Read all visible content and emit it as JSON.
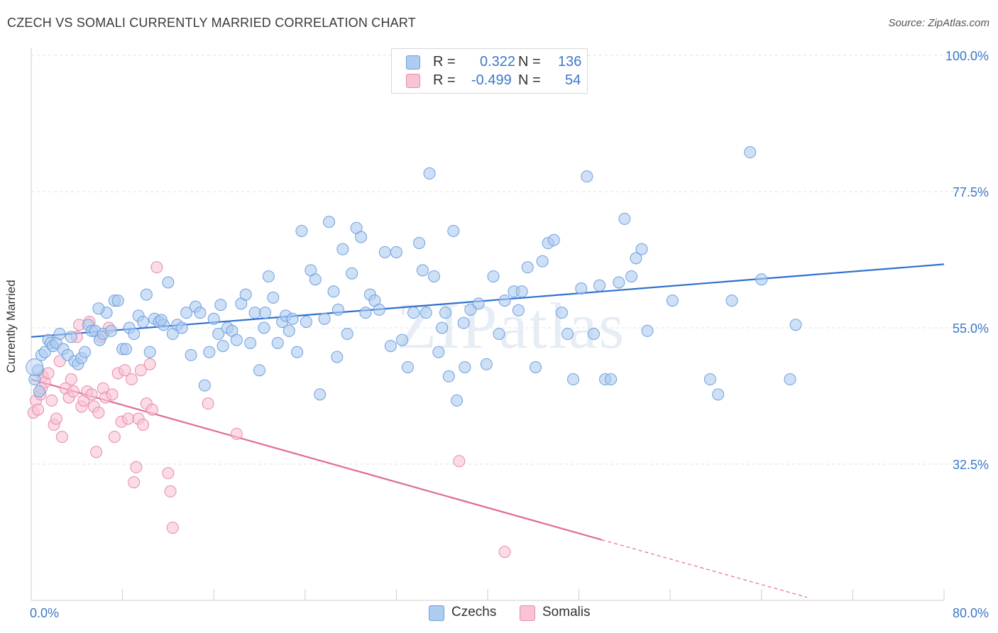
{
  "title": "CZECH VS SOMALI CURRENTLY MARRIED CORRELATION CHART",
  "source": "Source: ZipAtlas.com",
  "watermark": "ZIPatlas",
  "legend_top": {
    "rows": [
      {
        "r_label": "R =",
        "r_value": "0.322",
        "n_label": "N =",
        "n_value": "136",
        "color": "#aecbf0",
        "border": "#6f9fe0"
      },
      {
        "r_label": "R =",
        "r_value": "-0.499",
        "n_label": "N =",
        "n_value": "54",
        "color": "#f8c3d4",
        "border": "#e88aa8"
      }
    ]
  },
  "legend_bottom": [
    {
      "label": "Czechs",
      "color": "#aecbf0",
      "border": "#6f9fe0"
    },
    {
      "label": "Somalis",
      "color": "#f8c3d4",
      "border": "#e88aa8"
    }
  ],
  "chart_data": {
    "type": "scatter",
    "title": "CZECH VS SOMALI CURRENTLY MARRIED CORRELATION CHART",
    "xlabel": "",
    "ylabel": "Currently Married",
    "xlim": [
      0,
      80
    ],
    "ylim": [
      10,
      100
    ],
    "x_tick_labels": [
      "0.0%",
      "80.0%"
    ],
    "y_ticks": [
      32.5,
      55.0,
      77.5,
      100.0
    ],
    "y_tick_labels": [
      "32.5%",
      "55.0%",
      "77.5%",
      "100.0%"
    ],
    "grid": true,
    "legend_position": "top-center",
    "colors": {
      "czechs_fill": "#aecbf0",
      "czechs_edge": "#6f9fe0",
      "czechs_line": "#2f6fcf",
      "somalis_fill": "#f8c3d4",
      "somalis_edge": "#e88aa8",
      "somalis_line": "#e06b98",
      "tick_label": "#3b78c9"
    },
    "series": [
      {
        "name": "Czechs",
        "trend": {
          "x": [
            0,
            80
          ],
          "y": [
            53.5,
            65.5
          ]
        },
        "points": [
          [
            0.3,
            46.5
          ],
          [
            0.6,
            48.0
          ],
          [
            0.7,
            44.5
          ],
          [
            0.9,
            50.5
          ],
          [
            1.2,
            51.0
          ],
          [
            1.5,
            53.0
          ],
          [
            1.7,
            52.5
          ],
          [
            1.9,
            52.0
          ],
          [
            2.2,
            52.5
          ],
          [
            2.5,
            54.0
          ],
          [
            2.8,
            51.5
          ],
          [
            3.2,
            50.5
          ],
          [
            3.5,
            53.5
          ],
          [
            3.8,
            49.5
          ],
          [
            4.1,
            49.0
          ],
          [
            4.4,
            50.0
          ],
          [
            4.7,
            51.0
          ],
          [
            5.0,
            55.5
          ],
          [
            5.3,
            54.5
          ],
          [
            5.6,
            54.5
          ],
          [
            6.0,
            53.0
          ],
          [
            6.3,
            54.0
          ],
          [
            6.6,
            57.5
          ],
          [
            7.0,
            54.5
          ],
          [
            7.3,
            59.5
          ],
          [
            7.6,
            59.5
          ],
          [
            8.0,
            51.5
          ],
          [
            8.3,
            51.5
          ],
          [
            8.6,
            55.0
          ],
          [
            9.0,
            54.0
          ],
          [
            9.4,
            57.0
          ],
          [
            9.8,
            56.0
          ],
          [
            10.1,
            60.5
          ],
          [
            10.4,
            51.0
          ],
          [
            10.8,
            56.5
          ],
          [
            11.2,
            56.0
          ],
          [
            11.6,
            55.5
          ],
          [
            12.0,
            62.5
          ],
          [
            12.4,
            54.0
          ],
          [
            12.8,
            55.5
          ],
          [
            13.2,
            55.0
          ],
          [
            13.6,
            57.5
          ],
          [
            14.0,
            50.5
          ],
          [
            14.4,
            58.5
          ],
          [
            14.8,
            57.5
          ],
          [
            15.2,
            45.5
          ],
          [
            15.6,
            51.0
          ],
          [
            16.0,
            56.5
          ],
          [
            16.4,
            54.0
          ],
          [
            16.8,
            52.0
          ],
          [
            17.2,
            55.0
          ],
          [
            17.6,
            54.5
          ],
          [
            18.0,
            53.0
          ],
          [
            18.4,
            59.0
          ],
          [
            18.8,
            60.5
          ],
          [
            19.2,
            52.5
          ],
          [
            19.6,
            57.5
          ],
          [
            20.0,
            48.0
          ],
          [
            20.4,
            55.0
          ],
          [
            20.8,
            63.5
          ],
          [
            21.2,
            60.0
          ],
          [
            21.6,
            52.5
          ],
          [
            22.0,
            56.0
          ],
          [
            22.3,
            57.0
          ],
          [
            22.6,
            54.5
          ],
          [
            22.9,
            56.5
          ],
          [
            23.3,
            51.0
          ],
          [
            23.7,
            71.0
          ],
          [
            24.1,
            56.0
          ],
          [
            24.5,
            64.5
          ],
          [
            24.9,
            63.0
          ],
          [
            25.3,
            44.0
          ],
          [
            25.7,
            56.5
          ],
          [
            26.1,
            72.5
          ],
          [
            26.5,
            61.0
          ],
          [
            26.9,
            58.0
          ],
          [
            27.3,
            68.0
          ],
          [
            27.7,
            54.0
          ],
          [
            28.1,
            64.0
          ],
          [
            28.5,
            71.5
          ],
          [
            28.9,
            70.0
          ],
          [
            29.3,
            57.5
          ],
          [
            29.7,
            60.5
          ],
          [
            30.1,
            59.5
          ],
          [
            30.5,
            58.0
          ],
          [
            31.0,
            67.5
          ],
          [
            31.5,
            52.0
          ],
          [
            32.0,
            67.5
          ],
          [
            32.5,
            53.0
          ],
          [
            33.0,
            48.5
          ],
          [
            33.5,
            57.5
          ],
          [
            34.0,
            69.0
          ],
          [
            34.3,
            64.5
          ],
          [
            34.6,
            57.5
          ],
          [
            34.9,
            80.5
          ],
          [
            35.3,
            63.5
          ],
          [
            35.7,
            51.0
          ],
          [
            36.0,
            55.0
          ],
          [
            36.3,
            57.5
          ],
          [
            36.6,
            47.0
          ],
          [
            37.0,
            71.0
          ],
          [
            37.3,
            43.0
          ],
          [
            38.0,
            48.5
          ],
          [
            38.5,
            58.0
          ],
          [
            39.2,
            59.0
          ],
          [
            39.9,
            49.0
          ],
          [
            40.5,
            63.5
          ],
          [
            41.0,
            54.0
          ],
          [
            41.5,
            59.5
          ],
          [
            42.3,
            61.0
          ],
          [
            43.0,
            61.0
          ],
          [
            43.5,
            65.0
          ],
          [
            44.2,
            48.5
          ],
          [
            44.8,
            66.0
          ],
          [
            45.3,
            69.0
          ],
          [
            45.8,
            69.5
          ],
          [
            46.5,
            57.5
          ],
          [
            47.0,
            54.0
          ],
          [
            47.5,
            46.5
          ],
          [
            48.2,
            61.5
          ],
          [
            48.7,
            80.0
          ],
          [
            49.3,
            54.0
          ],
          [
            49.8,
            62.0
          ],
          [
            50.3,
            46.5
          ],
          [
            50.8,
            46.5
          ],
          [
            51.5,
            62.5
          ],
          [
            52.0,
            73.0
          ],
          [
            52.6,
            63.5
          ],
          [
            53.0,
            66.5
          ],
          [
            53.5,
            68.0
          ],
          [
            54.0,
            54.5
          ],
          [
            56.2,
            59.5
          ],
          [
            59.5,
            46.5
          ],
          [
            60.2,
            44.0
          ],
          [
            61.4,
            59.5
          ],
          [
            63.0,
            84.0
          ],
          [
            66.5,
            46.5
          ],
          [
            67.0,
            55.5
          ],
          [
            64.0,
            63.0
          ],
          [
            20.5,
            57.5
          ],
          [
            11.4,
            56.3
          ],
          [
            16.6,
            58.8
          ],
          [
            37.9,
            55.8
          ],
          [
            42.7,
            57.9
          ],
          [
            26.8,
            50.2
          ],
          [
            5.9,
            58.2
          ]
        ]
      },
      {
        "name": "Somalis",
        "trend": {
          "x": [
            0,
            50
          ],
          "y": [
            46.5,
            20.0
          ]
        },
        "trend_dashed": {
          "x": [
            50,
            68
          ],
          "y": [
            20.0,
            10.5
          ]
        },
        "points": [
          [
            0.2,
            41.0
          ],
          [
            0.4,
            43.0
          ],
          [
            0.6,
            41.5
          ],
          [
            0.8,
            44.0
          ],
          [
            1.0,
            47.0
          ],
          [
            1.2,
            46.0
          ],
          [
            1.5,
            47.5
          ],
          [
            1.8,
            43.0
          ],
          [
            2.0,
            39.0
          ],
          [
            2.2,
            40.0
          ],
          [
            2.5,
            49.5
          ],
          [
            2.7,
            37.0
          ],
          [
            3.0,
            45.0
          ],
          [
            3.3,
            43.5
          ],
          [
            3.5,
            46.5
          ],
          [
            3.7,
            44.5
          ],
          [
            4.0,
            53.5
          ],
          [
            4.2,
            55.5
          ],
          [
            4.4,
            42.0
          ],
          [
            4.6,
            43.0
          ],
          [
            4.9,
            44.5
          ],
          [
            5.1,
            56.0
          ],
          [
            5.3,
            44.0
          ],
          [
            5.5,
            42.0
          ],
          [
            5.7,
            34.5
          ],
          [
            5.9,
            41.0
          ],
          [
            6.1,
            53.5
          ],
          [
            6.3,
            45.0
          ],
          [
            6.5,
            43.5
          ],
          [
            6.8,
            55.0
          ],
          [
            7.1,
            44.0
          ],
          [
            7.3,
            37.0
          ],
          [
            7.6,
            47.5
          ],
          [
            7.9,
            39.5
          ],
          [
            8.2,
            48.0
          ],
          [
            8.5,
            40.0
          ],
          [
            8.8,
            46.5
          ],
          [
            9.0,
            29.5
          ],
          [
            9.2,
            32.0
          ],
          [
            9.4,
            40.0
          ],
          [
            9.6,
            48.0
          ],
          [
            9.8,
            39.0
          ],
          [
            10.1,
            42.5
          ],
          [
            10.4,
            49.0
          ],
          [
            10.6,
            41.5
          ],
          [
            11.0,
            65.0
          ],
          [
            12.0,
            31.0
          ],
          [
            12.2,
            28.0
          ],
          [
            12.4,
            22.0
          ],
          [
            15.5,
            42.5
          ],
          [
            18.0,
            37.5
          ],
          [
            37.5,
            33.0
          ],
          [
            41.5,
            18.0
          ],
          [
            0.9,
            45.0
          ]
        ]
      }
    ]
  }
}
